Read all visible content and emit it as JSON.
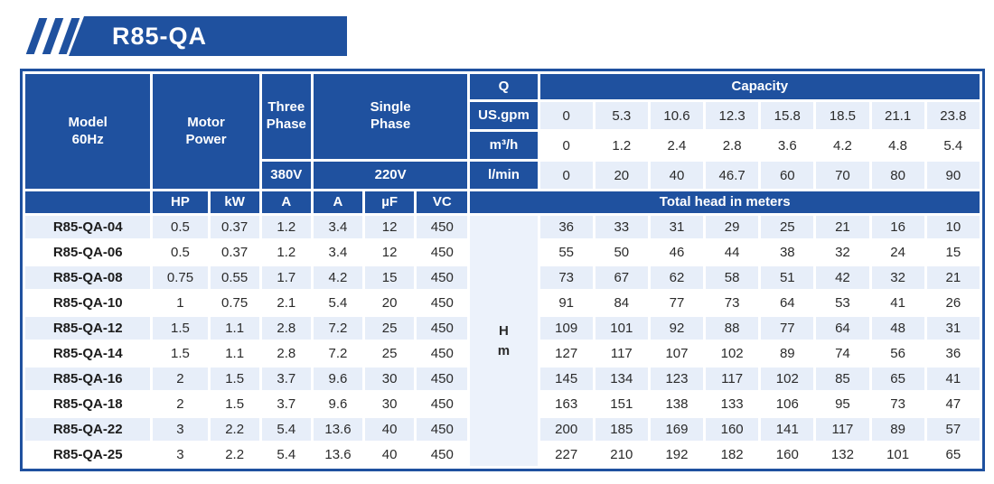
{
  "banner": {
    "title": "R85-QA"
  },
  "colors": {
    "primary": "#1f519f",
    "row_shade": "#e7eef9",
    "head_unit_shade": "#ecf2fb"
  },
  "table": {
    "header": {
      "model": [
        "Model",
        "60Hz"
      ],
      "motor": [
        "Motor",
        "Power"
      ],
      "three_phase": [
        "Three",
        "Phase"
      ],
      "single_phase": [
        "Single",
        "Phase"
      ],
      "three_phase_voltage": "380V",
      "single_phase_voltage": "220V",
      "q_label": "Q",
      "capacity_label": "Capacity",
      "hp": "HP",
      "kw": "kW",
      "amp_three": "A",
      "amp_single": "A",
      "uf": "µF",
      "vc": "VC",
      "total_head_label": "Total head in meters",
      "head_unit": [
        "H",
        "m"
      ]
    },
    "capacity_rows": [
      {
        "label": "US.gpm",
        "shaded": true,
        "values": [
          "0",
          "5.3",
          "10.6",
          "12.3",
          "15.8",
          "18.5",
          "21.1",
          "23.8"
        ]
      },
      {
        "label": "m³/h",
        "shaded": false,
        "values": [
          "0",
          "1.2",
          "2.4",
          "2.8",
          "3.6",
          "4.2",
          "4.8",
          "5.4"
        ]
      },
      {
        "label": "l/min",
        "shaded": true,
        "values": [
          "0",
          "20",
          "40",
          "46.7",
          "60",
          "70",
          "80",
          "90"
        ]
      }
    ],
    "rows": [
      {
        "model": "R85-QA-04",
        "shaded": true,
        "specs": [
          "0.5",
          "0.37",
          "1.2",
          "3.4",
          "12",
          "450"
        ],
        "heads": [
          "36",
          "33",
          "31",
          "29",
          "25",
          "21",
          "16",
          "10"
        ]
      },
      {
        "model": "R85-QA-06",
        "shaded": false,
        "specs": [
          "0.5",
          "0.37",
          "1.2",
          "3.4",
          "12",
          "450"
        ],
        "heads": [
          "55",
          "50",
          "46",
          "44",
          "38",
          "32",
          "24",
          "15"
        ]
      },
      {
        "model": "R85-QA-08",
        "shaded": true,
        "specs": [
          "0.75",
          "0.55",
          "1.7",
          "4.2",
          "15",
          "450"
        ],
        "heads": [
          "73",
          "67",
          "62",
          "58",
          "51",
          "42",
          "32",
          "21"
        ]
      },
      {
        "model": "R85-QA-10",
        "shaded": false,
        "specs": [
          "1",
          "0.75",
          "2.1",
          "5.4",
          "20",
          "450"
        ],
        "heads": [
          "91",
          "84",
          "77",
          "73",
          "64",
          "53",
          "41",
          "26"
        ]
      },
      {
        "model": "R85-QA-12",
        "shaded": true,
        "specs": [
          "1.5",
          "1.1",
          "2.8",
          "7.2",
          "25",
          "450"
        ],
        "heads": [
          "109",
          "101",
          "92",
          "88",
          "77",
          "64",
          "48",
          "31"
        ]
      },
      {
        "model": "R85-QA-14",
        "shaded": false,
        "specs": [
          "1.5",
          "1.1",
          "2.8",
          "7.2",
          "25",
          "450"
        ],
        "heads": [
          "127",
          "117",
          "107",
          "102",
          "89",
          "74",
          "56",
          "36"
        ]
      },
      {
        "model": "R85-QA-16",
        "shaded": true,
        "specs": [
          "2",
          "1.5",
          "3.7",
          "9.6",
          "30",
          "450"
        ],
        "heads": [
          "145",
          "134",
          "123",
          "117",
          "102",
          "85",
          "65",
          "41"
        ]
      },
      {
        "model": "R85-QA-18",
        "shaded": false,
        "specs": [
          "2",
          "1.5",
          "3.7",
          "9.6",
          "30",
          "450"
        ],
        "heads": [
          "163",
          "151",
          "138",
          "133",
          "106",
          "95",
          "73",
          "47"
        ]
      },
      {
        "model": "R85-QA-22",
        "shaded": true,
        "specs": [
          "3",
          "2.2",
          "5.4",
          "13.6",
          "40",
          "450"
        ],
        "heads": [
          "200",
          "185",
          "169",
          "160",
          "141",
          "117",
          "89",
          "57"
        ]
      },
      {
        "model": "R85-QA-25",
        "shaded": false,
        "specs": [
          "3",
          "2.2",
          "5.4",
          "13.6",
          "40",
          "450"
        ],
        "heads": [
          "227",
          "210",
          "192",
          "182",
          "160",
          "132",
          "101",
          "65"
        ]
      }
    ]
  }
}
